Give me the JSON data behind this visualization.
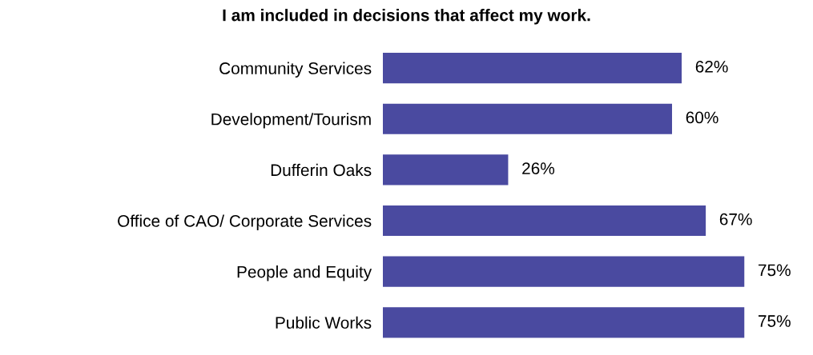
{
  "chart_data": {
    "type": "bar",
    "orientation": "horizontal",
    "title": "I am included in decisions that affect my work.",
    "categories": [
      "Community Services",
      "Development/Tourism",
      "Dufferin Oaks",
      "Office of CAO/ Corporate Services",
      "People and Equity",
      "Public Works"
    ],
    "values": [
      62,
      60,
      26,
      67,
      75,
      75
    ],
    "value_labels": [
      "62%",
      "60%",
      "26%",
      "67%",
      "75%",
      "75%"
    ],
    "color": "#4a4aa0",
    "tick_labels": "y",
    "grid": false,
    "legend": false
  }
}
